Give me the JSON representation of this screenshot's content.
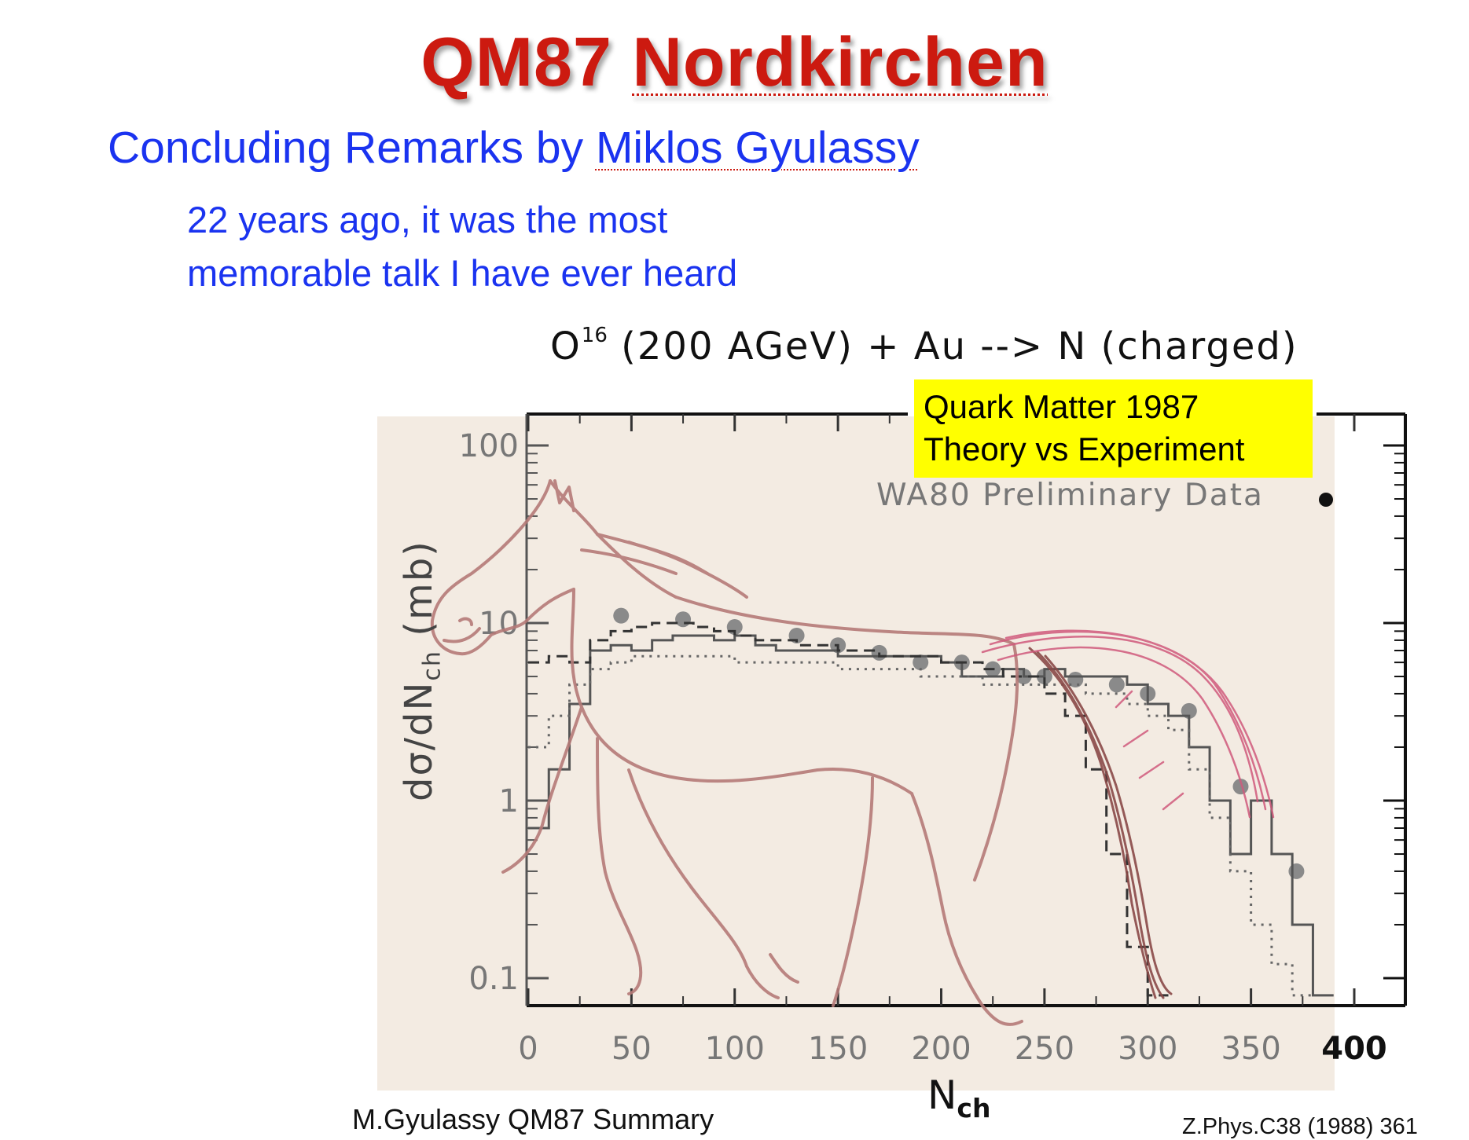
{
  "slide": {
    "title_part1": "QM87",
    "title_part2": "Nordkirchen",
    "subtitle_part1": "Concluding Remarks by",
    "subtitle_name": "Miklos Gyulassy",
    "memo_line1": "22 years ago, it was the most",
    "memo_line2": "memorable talk I have ever heard",
    "footer_left": "M.Gyulassy QM87 Summary",
    "footer_right": "Z.Phys.C38 (1988) 361"
  },
  "colors": {
    "title": "#cc1a10",
    "subtitle": "#1a33f0",
    "callout_bg": "#ffff00",
    "overlay_bg": "#f3ebe2",
    "horse_stroke": "#b57a78",
    "mane_stroke": "#d05a7c"
  },
  "chart_data": {
    "type": "scatter",
    "title_main": "O",
    "title_sup": "16",
    "title_rest": "(200  AGeV)  +  Au  -->  N (charged)",
    "callout_line1": "Quark Matter 1987",
    "callout_line2": "Theory vs Experiment",
    "legend_label": "WA80  Preliminary  Data",
    "xlabel_main": "N",
    "xlabel_sub": "ch",
    "ylabel_main": "dσ/dN",
    "ylabel_sub": "ch",
    "ylabel_unit": "(mb)",
    "x_scale": "linear",
    "y_scale": "log",
    "xlim": [
      0,
      420
    ],
    "ylim": [
      0.07,
      150
    ],
    "x_ticks": [
      "0",
      "50",
      "100",
      "150",
      "200",
      "250",
      "300",
      "350",
      "400"
    ],
    "y_ticks": [
      "0.1",
      "1",
      "10",
      "100"
    ],
    "series": [
      {
        "name": "WA80  Preliminary  Data",
        "style": "points",
        "x": [
          45,
          75,
          100,
          130,
          150,
          170,
          190,
          210,
          225,
          240,
          250,
          265,
          285,
          300,
          320,
          345,
          372
        ],
        "y": [
          11,
          10.5,
          9.5,
          8.5,
          7.5,
          6.8,
          6,
          6,
          5.5,
          5,
          5,
          4.8,
          4.5,
          4,
          3.2,
          1.2,
          0.4
        ]
      },
      {
        "style": "histogram-solid",
        "x": [
          0,
          10,
          20,
          30,
          40,
          50,
          60,
          70,
          80,
          90,
          100,
          110,
          120,
          130,
          140,
          150,
          160,
          170,
          180,
          190,
          200,
          210,
          220,
          230,
          240,
          250,
          260,
          270,
          280,
          290,
          300,
          310,
          320,
          330,
          340,
          350,
          360,
          370,
          380
        ],
        "y": [
          0.7,
          1.5,
          3.5,
          7,
          7.5,
          7,
          8,
          8.5,
          8.5,
          8,
          8.5,
          7.5,
          7,
          7,
          7,
          6.5,
          6.5,
          6.5,
          6.5,
          6.5,
          6,
          5,
          5,
          5.5,
          5,
          5.5,
          5,
          5,
          5,
          4.5,
          3.5,
          3,
          2,
          1,
          0.5,
          1,
          0.5,
          0.2,
          0.08
        ]
      },
      {
        "style": "histogram-dashed",
        "x": [
          0,
          10,
          20,
          30,
          40,
          50,
          60,
          70,
          80,
          90,
          100,
          110,
          120,
          130,
          140,
          150,
          160,
          170,
          180,
          190,
          200,
          210,
          220,
          230,
          240,
          250,
          260,
          270,
          280,
          290,
          300
        ],
        "y": [
          6,
          6.5,
          6,
          8,
          9,
          9.5,
          10,
          10,
          9.5,
          9,
          8.5,
          8,
          8,
          7.5,
          7.5,
          7,
          7,
          6.5,
          6.5,
          6.5,
          6,
          6,
          5.5,
          5,
          5,
          4,
          3,
          1.5,
          0.5,
          0.15,
          0.08
        ]
      },
      {
        "style": "histogram-dotted",
        "x": [
          0,
          10,
          20,
          30,
          40,
          50,
          60,
          70,
          80,
          90,
          100,
          110,
          120,
          130,
          140,
          150,
          160,
          170,
          180,
          190,
          200,
          210,
          220,
          230,
          240,
          250,
          260,
          270,
          280,
          290,
          300,
          310,
          320,
          330,
          340,
          350,
          360,
          370
        ],
        "y": [
          2,
          3,
          4.5,
          5.5,
          6,
          6.5,
          6.5,
          6.5,
          6.5,
          6.5,
          6,
          6,
          6,
          6,
          6,
          5.5,
          5.5,
          5.5,
          5.5,
          5,
          5,
          5,
          4.5,
          4.5,
          4.5,
          4.5,
          4.5,
          4,
          4,
          3.5,
          3,
          2.5,
          1.5,
          0.8,
          0.4,
          0.2,
          0.12,
          0.08
        ]
      }
    ]
  }
}
